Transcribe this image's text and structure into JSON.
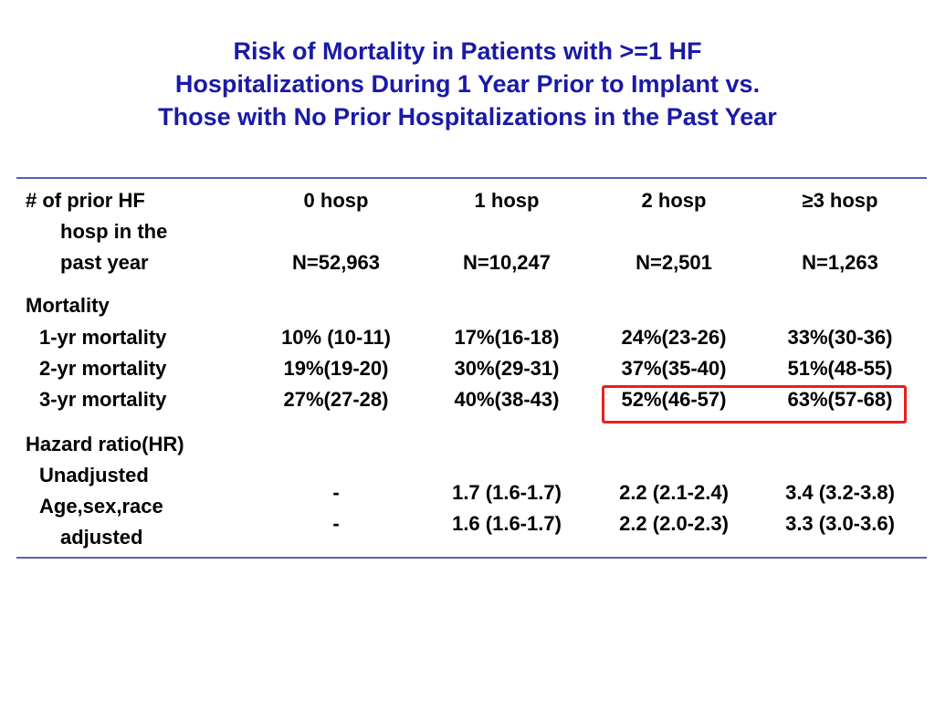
{
  "title": {
    "lines": [
      "Risk of Mortality in Patients with >=1 HF",
      "Hospitalizations During 1 Year Prior to Implant vs.",
      "Those with No Prior Hospitalizations in the Past Year"
    ]
  },
  "table": {
    "row_header": {
      "lines": [
        "# of prior HF",
        "hosp in the",
        "past year"
      ]
    },
    "columns": [
      {
        "label": "0 hosp",
        "n": "N=52,963"
      },
      {
        "label": "1 hosp",
        "n": "N=10,247"
      },
      {
        "label": "2 hosp",
        "n": "N=2,501"
      },
      {
        "label": "≥3 hosp",
        "n": "N=1,263"
      }
    ],
    "mortality": {
      "section_label": "Mortality",
      "rows": [
        {
          "label": "1-yr mortality",
          "values": [
            "10% (10-11)",
            "17%(16-18)",
            "24%(23-26)",
            "33%(30-36)"
          ]
        },
        {
          "label": "2-yr mortality",
          "values": [
            "19%(19-20)",
            "30%(29-31)",
            "37%(35-40)",
            "51%(48-55)"
          ]
        },
        {
          "label": "3-yr mortality",
          "values": [
            "27%(27-28)",
            "40%(38-43)",
            "52%(46-57)",
            "63%(57-68)"
          ]
        }
      ]
    },
    "hazard": {
      "section_label": "Hazard ratio(HR)",
      "rows": [
        {
          "label_lines": [
            "Unadjusted"
          ],
          "values": [
            "-",
            "1.7 (1.6-1.7)",
            "2.2 (2.1-2.4)",
            "3.4 (3.2-3.8)"
          ]
        },
        {
          "label_lines": [
            "Age,sex,race",
            "adjusted"
          ],
          "values": [
            "-",
            "1.6 (1.6-1.7)",
            "2.2 (2.0-2.3)",
            "3.3 (3.0-3.6)"
          ]
        }
      ]
    }
  },
  "colors": {
    "title": "#1a1aa6",
    "rule": "#5b5fb3",
    "highlight": "#e8201c"
  }
}
